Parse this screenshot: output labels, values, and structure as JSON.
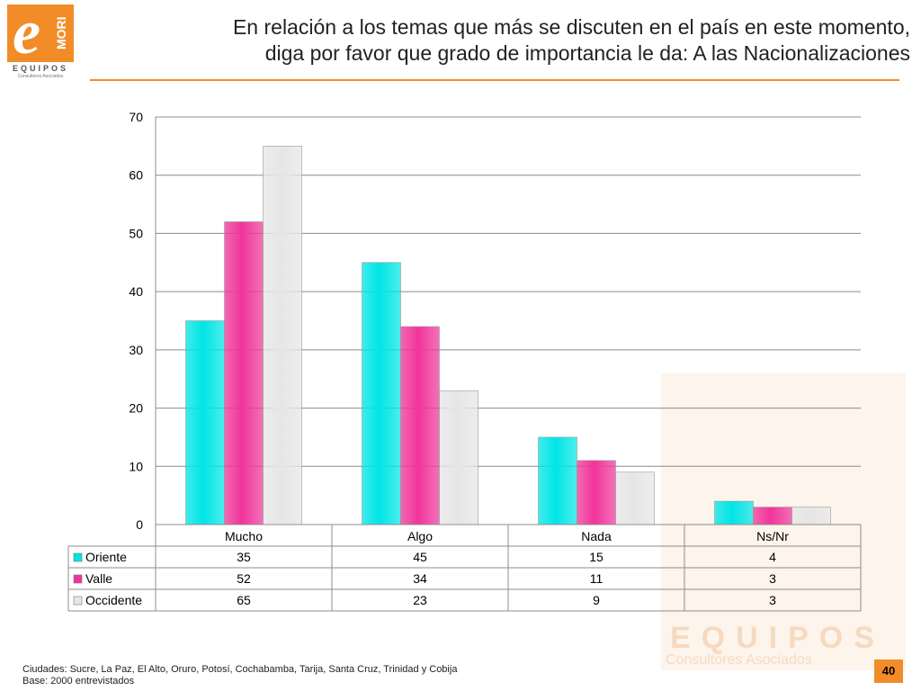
{
  "logo": {
    "mark": "e",
    "brand": "MORI",
    "name": "EQUIPOS",
    "subtitle": "Consultores Asociados"
  },
  "title_lines": [
    "En relación a los temas que más se discuten en el país en este momento,",
    "diga por favor que grado de importancia le da: A las Nacionalizaciones"
  ],
  "chart_data": {
    "type": "bar",
    "categories": [
      "Mucho",
      "Algo",
      "Nada",
      "Ns/Nr"
    ],
    "series": [
      {
        "name": "Oriente",
        "values": [
          35,
          45,
          15,
          4
        ],
        "color": "#00e5e5"
      },
      {
        "name": "Valle",
        "values": [
          52,
          34,
          11,
          3
        ],
        "color": "#f0359a"
      },
      {
        "name": "Occidente",
        "values": [
          65,
          23,
          9,
          3
        ],
        "color": "#e6e6e6"
      }
    ],
    "ylim": [
      0,
      70
    ],
    "yticks": [
      "0",
      "10",
      "20",
      "30",
      "40",
      "50",
      "60",
      "70"
    ],
    "grid": true,
    "legend": "data-table-left"
  },
  "footnote": {
    "line1": "Ciudades: Sucre, La Paz, El Alto, Oruro, Potosí, Cochabamba, Tarija, Santa Cruz, Trinidad y Cobija",
    "line2": "Base: 2000 entrevistados"
  },
  "page_number": "40",
  "colors": {
    "accent": "#f28c28"
  }
}
